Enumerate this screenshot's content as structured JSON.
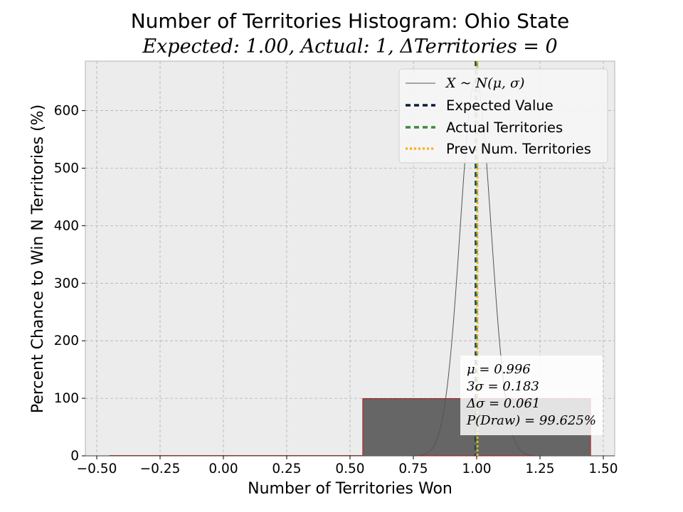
{
  "chart_data": {
    "type": "bar",
    "title": "Number of Territories Histogram: Ohio State",
    "subtitle": "Expected: 1.00, Actual: 1, ΔTerritories = 0",
    "xlabel": "Number of Territories Won",
    "ylabel": "Percent Chance to Win N Territories (%)",
    "xlim": [
      -0.545,
      1.545
    ],
    "ylim": [
      0,
      686
    ],
    "xticks": [
      -0.5,
      -0.25,
      0.0,
      0.25,
      0.5,
      0.75,
      1.0,
      1.25,
      1.5
    ],
    "xtick_labels": [
      "−0.50",
      "−0.25",
      "0.00",
      "0.25",
      "0.50",
      "0.75",
      "1.00",
      "1.25",
      "1.50"
    ],
    "yticks": [
      0,
      100,
      200,
      300,
      400,
      500,
      600
    ],
    "ytick_labels": [
      "0",
      "100",
      "200",
      "300",
      "400",
      "500",
      "600"
    ],
    "grid": true,
    "bars": [
      {
        "x_left": -0.45,
        "x_right": 0.55,
        "value": 0.375
      },
      {
        "x_left": 0.55,
        "x_right": 1.45,
        "value": 99.625
      }
    ],
    "normal_curve": {
      "mu": 0.996,
      "sigma": 0.061
    },
    "vlines": [
      {
        "name": "Expected Value",
        "x": 1.0,
        "color": "#0b1b3f",
        "style": "dashed"
      },
      {
        "name": "Actual Territories",
        "x": 1.0,
        "color": "#3a8a3f",
        "style": "dashed"
      },
      {
        "name": "Prev Num. Territories",
        "x": 1.0,
        "color": "#ffb020",
        "style": "dotted"
      }
    ],
    "legend": {
      "placement": "top-right",
      "entries": [
        {
          "label": "X ~ N(μ, σ)",
          "color": "#555555",
          "style": "solid"
        },
        {
          "label": "Expected Value",
          "color": "#0b1b3f",
          "style": "dashed"
        },
        {
          "label": "Actual Territories",
          "color": "#3a8a3f",
          "style": "dashed"
        },
        {
          "label": "Prev Num. Territories",
          "color": "#ffb020",
          "style": "dotted"
        }
      ]
    },
    "stats_box": {
      "placement": "bottom-right",
      "lines": [
        "μ = 0.996",
        "3σ = 0.183",
        "Δσ = 0.061",
        "P(Draw) = 99.625%"
      ]
    }
  },
  "colors": {
    "plot_bg": "#ececec",
    "grid": "#b0b0b0",
    "bar_fill": "#666666",
    "bar_edge": "#c00000",
    "curve": "#555555"
  }
}
